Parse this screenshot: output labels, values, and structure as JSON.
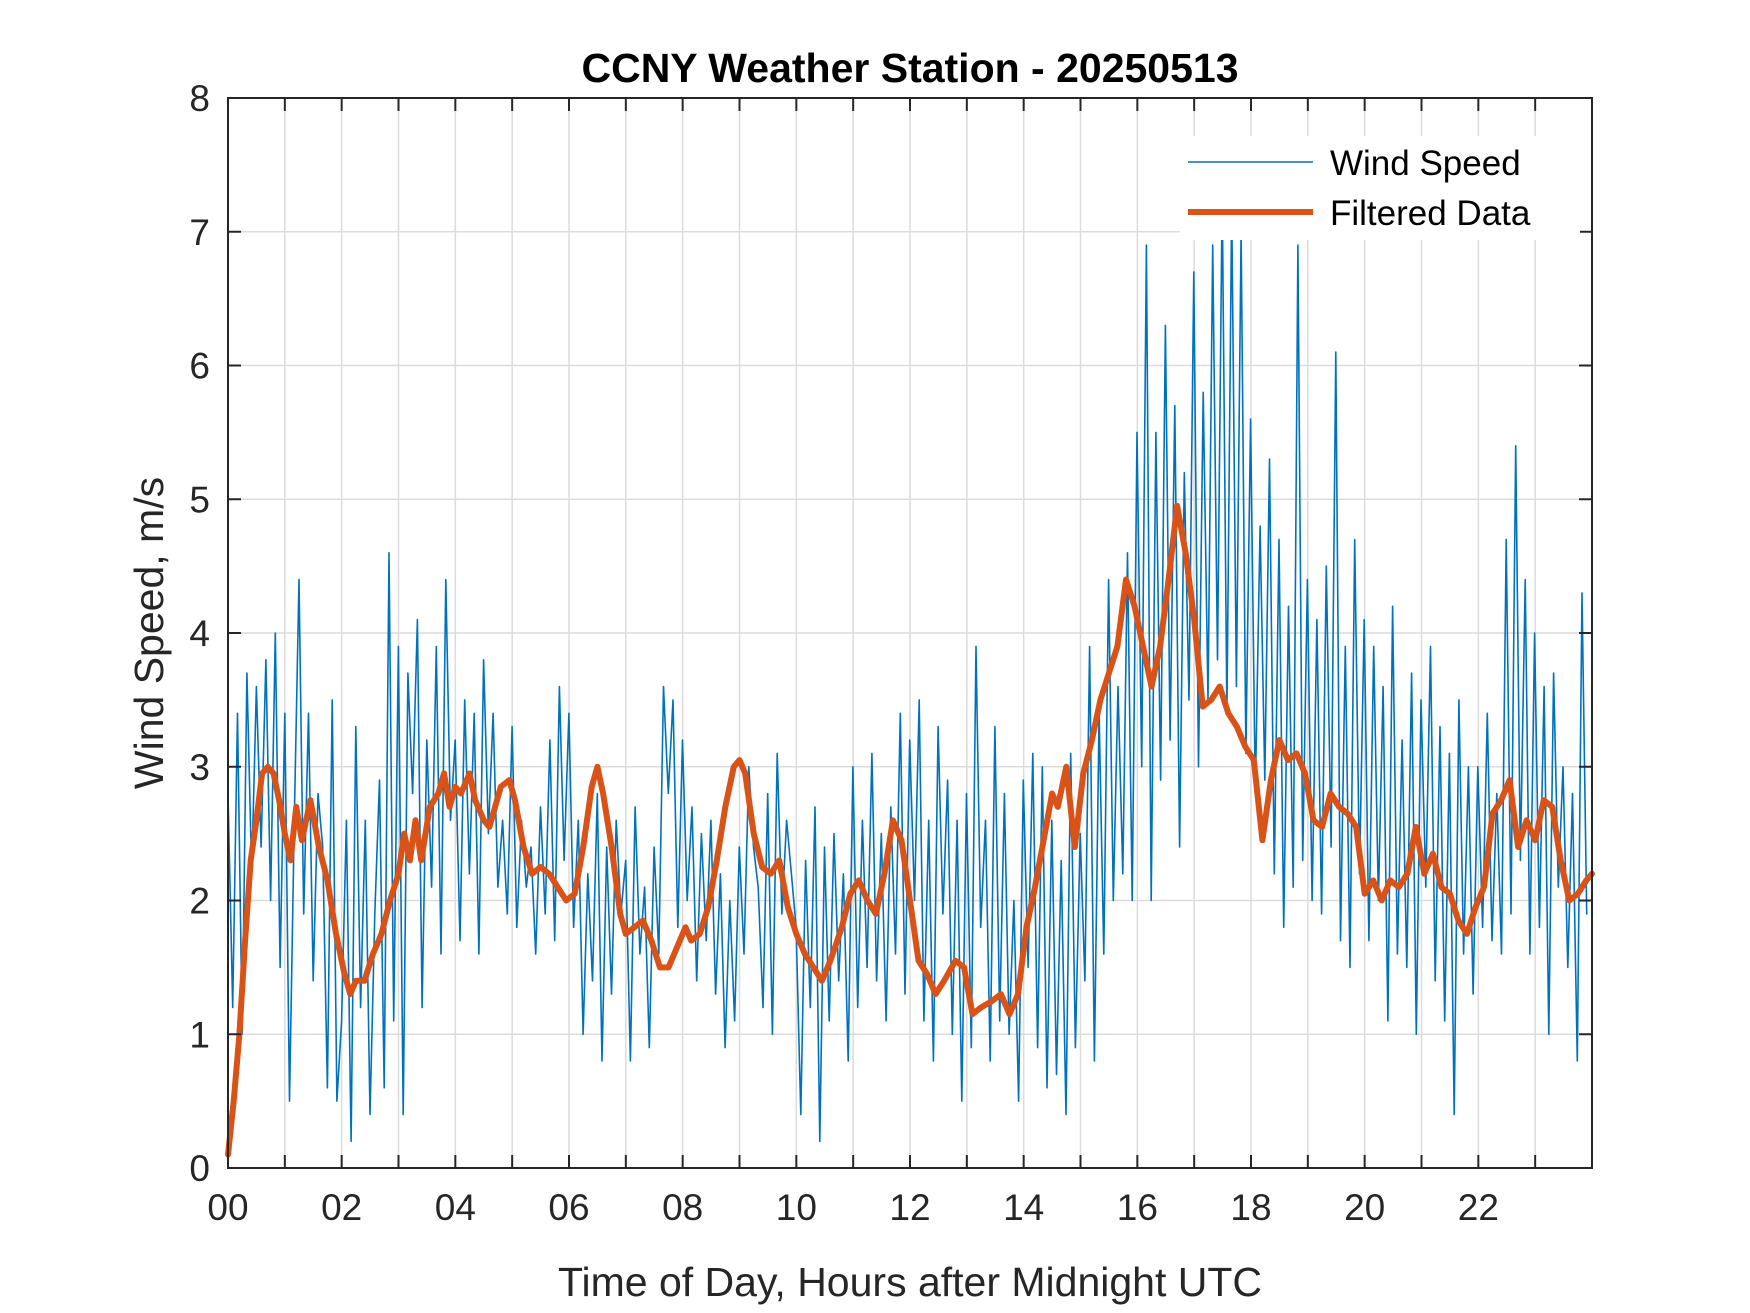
{
  "chart_data": {
    "type": "line",
    "title": "CCNY Weather Station - 20250513",
    "xlabel": "Time of Day, Hours after Midnight UTC",
    "ylabel": "Wind Speed, m/s",
    "xlim": [
      0,
      24
    ],
    "ylim": [
      0,
      8
    ],
    "xticks": [
      0,
      1,
      2,
      3,
      4,
      5,
      6,
      7,
      8,
      9,
      10,
      11,
      12,
      13,
      14,
      15,
      16,
      17,
      18,
      19,
      20,
      21,
      22,
      23
    ],
    "xtick_labels": [
      {
        "value": 0,
        "label": "00"
      },
      {
        "value": 2,
        "label": "02"
      },
      {
        "value": 4,
        "label": "04"
      },
      {
        "value": 6,
        "label": "06"
      },
      {
        "value": 8,
        "label": "08"
      },
      {
        "value": 10,
        "label": "10"
      },
      {
        "value": 12,
        "label": "12"
      },
      {
        "value": 14,
        "label": "14"
      },
      {
        "value": 16,
        "label": "16"
      },
      {
        "value": 18,
        "label": "18"
      },
      {
        "value": 20,
        "label": "20"
      },
      {
        "value": 22,
        "label": "22"
      }
    ],
    "yticks": [
      0,
      1,
      2,
      3,
      4,
      5,
      6,
      7,
      8
    ],
    "ytick_labels": [
      "0",
      "1",
      "2",
      "3",
      "4",
      "5",
      "6",
      "7",
      "8"
    ],
    "grid": true,
    "legend": {
      "placement": "top-right",
      "entries": [
        {
          "label": "Wind Speed",
          "series": "wind_speed"
        },
        {
          "label": "Filtered Data",
          "series": "filtered"
        }
      ]
    },
    "series": [
      {
        "name": "Wind Speed",
        "id": "wind_speed",
        "color": "#0072BD",
        "x_start": 0,
        "x_step": 0.0833,
        "values": [
          2.8,
          1.2,
          3.4,
          1.0,
          3.7,
          2.2,
          3.6,
          2.4,
          3.8,
          2.0,
          4.0,
          1.5,
          3.4,
          0.5,
          2.6,
          4.4,
          1.9,
          3.4,
          1.4,
          2.8,
          2.4,
          0.6,
          3.5,
          0.5,
          1.1,
          2.6,
          0.2,
          3.3,
          1.2,
          2.6,
          0.4,
          1.9,
          2.9,
          0.6,
          4.6,
          1.1,
          3.9,
          0.4,
          3.7,
          2.8,
          4.1,
          1.2,
          3.2,
          2.1,
          3.9,
          1.6,
          4.4,
          2.6,
          3.2,
          1.7,
          3.5,
          2.2,
          3.4,
          1.6,
          3.8,
          2.5,
          3.4,
          2.1,
          2.6,
          1.9,
          3.3,
          1.8,
          2.6,
          2.1,
          2.4,
          1.6,
          2.7,
          1.9,
          3.2,
          1.7,
          3.6,
          2.3,
          3.4,
          1.8,
          2.6,
          1.0,
          2.2,
          1.4,
          2.8,
          0.8,
          2.4,
          1.3,
          2.6,
          1.9,
          2.3,
          0.8,
          2.7,
          1.6,
          2.1,
          0.9,
          2.4,
          1.6,
          3.6,
          2.8,
          3.5,
          1.8,
          3.2,
          2.0,
          2.7,
          1.4,
          2.5,
          1.7,
          2.6,
          1.3,
          2.2,
          0.9,
          2.0,
          1.1,
          2.4,
          1.6,
          3.0,
          2.4,
          2.1,
          1.2,
          2.8,
          1.0,
          3.1,
          1.9,
          2.6,
          2.2,
          1.8,
          0.4,
          2.3,
          1.2,
          2.7,
          0.2,
          2.4,
          1.1,
          2.5,
          1.4,
          2.2,
          0.8,
          3.0,
          1.2,
          2.6,
          1.5,
          3.1,
          1.4,
          2.5,
          1.1,
          2.7,
          1.6,
          3.4,
          1.3,
          3.2,
          2.0,
          3.5,
          1.1,
          2.6,
          0.8,
          3.3,
          1.9,
          2.9,
          1.0,
          2.6,
          0.5,
          2.8,
          0.9,
          3.9,
          1.8,
          2.6,
          0.8,
          3.3,
          1.1,
          2.8,
          1.0,
          2.0,
          0.5,
          2.9,
          1.5,
          3.1,
          0.9,
          3.0,
          0.6,
          2.6,
          0.7,
          2.3,
          0.4,
          3.1,
          0.9,
          2.5,
          1.4,
          3.9,
          0.8,
          3.4,
          1.6,
          4.4,
          2.0,
          3.6,
          2.2,
          4.6,
          2.0,
          5.5,
          3.0,
          6.9,
          2.0,
          5.5,
          2.9,
          6.3,
          3.2,
          5.7,
          2.4,
          5.2,
          3.5,
          6.7,
          3.0,
          5.8,
          3.5,
          6.9,
          3.8,
          7.3,
          3.4,
          7.2,
          3.6,
          7.0,
          3.1,
          5.6,
          2.8,
          4.8,
          2.9,
          5.3,
          2.2,
          4.7,
          1.8,
          4.2,
          2.1,
          6.9,
          2.3,
          4.4,
          2.0,
          4.1,
          1.9,
          4.5,
          2.4,
          6.1,
          1.7,
          3.9,
          1.5,
          4.7,
          2.2,
          4.1,
          1.7,
          3.9,
          2.0,
          3.6,
          1.1,
          4.2,
          1.6,
          3.2,
          1.5,
          3.7,
          1.0,
          3.5,
          2.1,
          3.9,
          1.4,
          3.3,
          1.1,
          3.1,
          0.4,
          3.5,
          1.6,
          3.0,
          1.3,
          3.0,
          1.8,
          3.4,
          1.7,
          2.8,
          1.6,
          4.7,
          1.9,
          5.4,
          2.3,
          4.4,
          1.6,
          4.0,
          1.8,
          3.6,
          1.0,
          3.7,
          2.1,
          3.0,
          1.5,
          2.8,
          0.8,
          4.3,
          1.9
        ]
      },
      {
        "name": "Filtered Data",
        "id": "filtered",
        "color": "#D95319",
        "points": [
          [
            0.0,
            0.1
          ],
          [
            0.1,
            0.5
          ],
          [
            0.2,
            1.0
          ],
          [
            0.3,
            1.7
          ],
          [
            0.4,
            2.3
          ],
          [
            0.5,
            2.6
          ],
          [
            0.6,
            2.95
          ],
          [
            0.7,
            3.0
          ],
          [
            0.8,
            2.95
          ],
          [
            0.9,
            2.75
          ],
          [
            1.0,
            2.5
          ],
          [
            1.1,
            2.3
          ],
          [
            1.2,
            2.7
          ],
          [
            1.3,
            2.45
          ],
          [
            1.45,
            2.75
          ],
          [
            1.6,
            2.4
          ],
          [
            1.75,
            2.15
          ],
          [
            1.9,
            1.75
          ],
          [
            2.05,
            1.45
          ],
          [
            2.15,
            1.3
          ],
          [
            2.25,
            1.4
          ],
          [
            2.4,
            1.4
          ],
          [
            2.55,
            1.6
          ],
          [
            2.7,
            1.75
          ],
          [
            2.85,
            2.0
          ],
          [
            3.0,
            2.2
          ],
          [
            3.1,
            2.5
          ],
          [
            3.2,
            2.3
          ],
          [
            3.3,
            2.6
          ],
          [
            3.4,
            2.3
          ],
          [
            3.55,
            2.7
          ],
          [
            3.7,
            2.8
          ],
          [
            3.8,
            2.95
          ],
          [
            3.9,
            2.7
          ],
          [
            4.0,
            2.85
          ],
          [
            4.1,
            2.8
          ],
          [
            4.25,
            2.95
          ],
          [
            4.35,
            2.75
          ],
          [
            4.5,
            2.6
          ],
          [
            4.6,
            2.55
          ],
          [
            4.8,
            2.85
          ],
          [
            4.95,
            2.9
          ],
          [
            5.05,
            2.75
          ],
          [
            5.2,
            2.4
          ],
          [
            5.35,
            2.2
          ],
          [
            5.5,
            2.25
          ],
          [
            5.65,
            2.2
          ],
          [
            5.8,
            2.1
          ],
          [
            5.95,
            2.0
          ],
          [
            6.1,
            2.05
          ],
          [
            6.25,
            2.4
          ],
          [
            6.4,
            2.85
          ],
          [
            6.5,
            3.0
          ],
          [
            6.6,
            2.8
          ],
          [
            6.75,
            2.4
          ],
          [
            6.9,
            1.9
          ],
          [
            7.0,
            1.75
          ],
          [
            7.15,
            1.8
          ],
          [
            7.3,
            1.85
          ],
          [
            7.45,
            1.7
          ],
          [
            7.6,
            1.5
          ],
          [
            7.75,
            1.5
          ],
          [
            7.9,
            1.65
          ],
          [
            8.05,
            1.8
          ],
          [
            8.15,
            1.7
          ],
          [
            8.3,
            1.75
          ],
          [
            8.45,
            1.95
          ],
          [
            8.6,
            2.3
          ],
          [
            8.75,
            2.7
          ],
          [
            8.9,
            3.0
          ],
          [
            9.0,
            3.05
          ],
          [
            9.1,
            2.95
          ],
          [
            9.25,
            2.5
          ],
          [
            9.4,
            2.25
          ],
          [
            9.55,
            2.2
          ],
          [
            9.7,
            2.3
          ],
          [
            9.85,
            1.95
          ],
          [
            10.0,
            1.75
          ],
          [
            10.15,
            1.6
          ],
          [
            10.3,
            1.5
          ],
          [
            10.45,
            1.4
          ],
          [
            10.6,
            1.55
          ],
          [
            10.8,
            1.8
          ],
          [
            10.95,
            2.05
          ],
          [
            11.1,
            2.15
          ],
          [
            11.25,
            2.0
          ],
          [
            11.4,
            1.9
          ],
          [
            11.55,
            2.2
          ],
          [
            11.7,
            2.6
          ],
          [
            11.85,
            2.45
          ],
          [
            12.0,
            2.0
          ],
          [
            12.15,
            1.55
          ],
          [
            12.3,
            1.45
          ],
          [
            12.45,
            1.3
          ],
          [
            12.6,
            1.4
          ],
          [
            12.8,
            1.55
          ],
          [
            12.95,
            1.5
          ],
          [
            13.1,
            1.15
          ],
          [
            13.25,
            1.2
          ],
          [
            13.45,
            1.25
          ],
          [
            13.6,
            1.3
          ],
          [
            13.75,
            1.15
          ],
          [
            13.9,
            1.3
          ],
          [
            14.05,
            1.8
          ],
          [
            14.2,
            2.1
          ],
          [
            14.35,
            2.45
          ],
          [
            14.5,
            2.8
          ],
          [
            14.6,
            2.7
          ],
          [
            14.75,
            3.0
          ],
          [
            14.9,
            2.4
          ],
          [
            15.05,
            2.95
          ],
          [
            15.2,
            3.2
          ],
          [
            15.35,
            3.5
          ],
          [
            15.5,
            3.7
          ],
          [
            15.65,
            3.9
          ],
          [
            15.8,
            4.4
          ],
          [
            15.95,
            4.2
          ],
          [
            16.1,
            3.9
          ],
          [
            16.25,
            3.6
          ],
          [
            16.4,
            3.9
          ],
          [
            16.55,
            4.4
          ],
          [
            16.7,
            4.95
          ],
          [
            16.85,
            4.6
          ],
          [
            17.0,
            4.1
          ],
          [
            17.15,
            3.45
          ],
          [
            17.3,
            3.5
          ],
          [
            17.45,
            3.6
          ],
          [
            17.6,
            3.4
          ],
          [
            17.75,
            3.3
          ],
          [
            17.9,
            3.15
          ],
          [
            18.05,
            3.05
          ],
          [
            18.2,
            2.45
          ],
          [
            18.35,
            2.9
          ],
          [
            18.5,
            3.2
          ],
          [
            18.65,
            3.05
          ],
          [
            18.8,
            3.1
          ],
          [
            18.95,
            2.95
          ],
          [
            19.1,
            2.6
          ],
          [
            19.25,
            2.55
          ],
          [
            19.4,
            2.8
          ],
          [
            19.55,
            2.7
          ],
          [
            19.7,
            2.65
          ],
          [
            19.85,
            2.55
          ],
          [
            20.0,
            2.05
          ],
          [
            20.15,
            2.15
          ],
          [
            20.3,
            2.0
          ],
          [
            20.45,
            2.15
          ],
          [
            20.6,
            2.1
          ],
          [
            20.75,
            2.2
          ],
          [
            20.9,
            2.55
          ],
          [
            21.05,
            2.2
          ],
          [
            21.2,
            2.35
          ],
          [
            21.35,
            2.1
          ],
          [
            21.5,
            2.05
          ],
          [
            21.65,
            1.85
          ],
          [
            21.8,
            1.75
          ],
          [
            21.95,
            1.95
          ],
          [
            22.1,
            2.1
          ],
          [
            22.25,
            2.65
          ],
          [
            22.4,
            2.75
          ],
          [
            22.55,
            2.9
          ],
          [
            22.7,
            2.4
          ],
          [
            22.85,
            2.6
          ],
          [
            23.0,
            2.45
          ],
          [
            23.15,
            2.75
          ],
          [
            23.3,
            2.7
          ],
          [
            23.45,
            2.3
          ],
          [
            23.6,
            2.0
          ],
          [
            23.75,
            2.05
          ],
          [
            23.9,
            2.15
          ],
          [
            24.0,
            2.2
          ]
        ]
      }
    ]
  }
}
